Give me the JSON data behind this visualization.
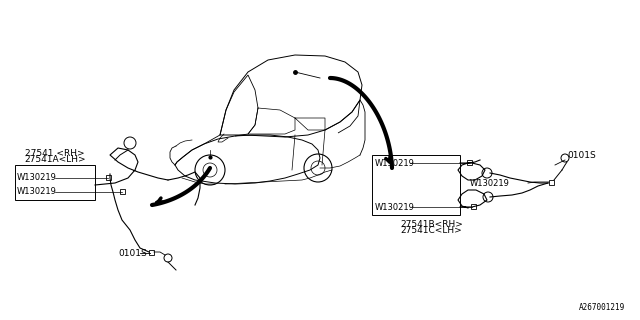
{
  "background_color": "#ffffff",
  "line_color": "#000000",
  "text_color": "#000000",
  "diagram_id": "A267001219",
  "left_assembly": {
    "label1": "27541 <RH>",
    "label2": "27541A<LH>",
    "box_label1": "W130219",
    "box_label2": "W130219",
    "connector_label": "0101S"
  },
  "right_assembly": {
    "label1": "27541B<RH>",
    "label2": "27541C<LH>",
    "box_label1": "W130219",
    "box_label2": "W130219",
    "box_label3": "W130219",
    "connector_label": "0101S"
  },
  "font_size": 6.5,
  "diagram_font_size": 5.5
}
